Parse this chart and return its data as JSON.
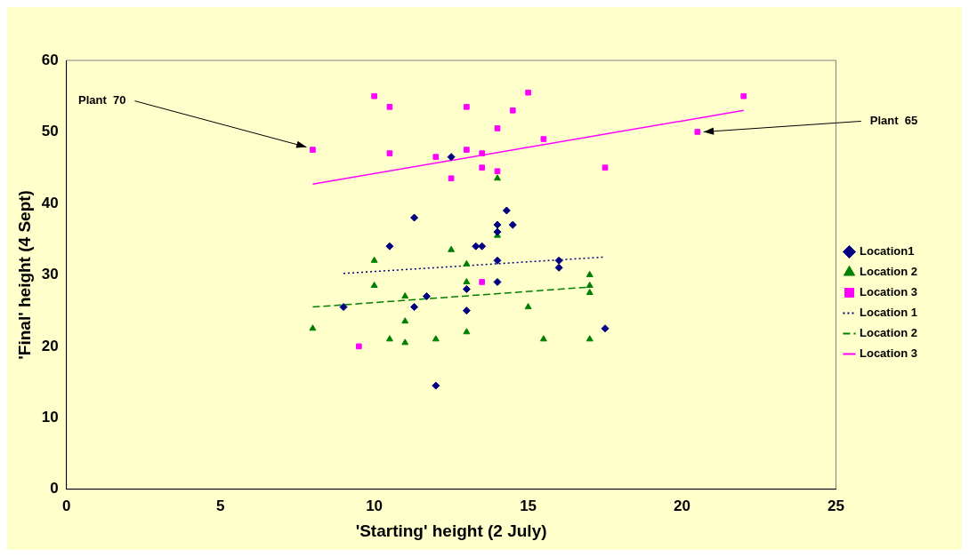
{
  "chart_data": {
    "type": "scatter",
    "xlabel": "'Starting' height (2 July)",
    "ylabel": "'Final' height (4 Sept)",
    "xlim": [
      0,
      25
    ],
    "xticks": [
      0,
      5,
      10,
      15,
      20,
      25
    ],
    "ylim": [
      0,
      60
    ],
    "yticks": [
      0,
      10,
      20,
      30,
      40,
      50,
      60
    ],
    "grid": false,
    "legend": "right",
    "annotations": [
      {
        "text": "Plant  70",
        "x": 8,
        "y": 47.5
      },
      {
        "text": "Plant  65",
        "x": 20.5,
        "y": 50
      }
    ],
    "series": [
      {
        "name": "Location1",
        "marker": "diamond",
        "color": "#000080",
        "x": [
          9,
          10.5,
          11.3,
          11.3,
          11.7,
          12,
          12.5,
          13,
          13,
          13.3,
          13.5,
          14,
          14,
          14,
          14,
          14.3,
          14.5,
          16,
          16,
          17.5
        ],
        "values": [
          25.5,
          34,
          38,
          25.5,
          27,
          14.5,
          46.5,
          28,
          25,
          34,
          34,
          37,
          36,
          32,
          29,
          39,
          37,
          32,
          31,
          22.5
        ]
      },
      {
        "name": "Location 2",
        "marker": "triangle",
        "color": "#008000",
        "x": [
          8,
          10,
          10,
          10.5,
          11,
          11,
          11,
          12,
          12.5,
          13,
          13,
          13,
          14,
          14,
          15,
          15.5,
          17,
          17,
          17,
          17
        ],
        "values": [
          22.5,
          32,
          28.5,
          21,
          27,
          23.5,
          20.5,
          21,
          33.5,
          31.5,
          29,
          22,
          43.5,
          35.5,
          25.5,
          21,
          30,
          28.5,
          27.5,
          21
        ]
      },
      {
        "name": "Location 3",
        "marker": "square",
        "color": "#ff00ff",
        "x": [
          8,
          9.5,
          10,
          10.5,
          10.5,
          12,
          12.5,
          13,
          13,
          13.5,
          13.5,
          13.5,
          14,
          14,
          14.5,
          15,
          15.5,
          17.5,
          20.5,
          22
        ],
        "values": [
          47.5,
          20,
          55,
          53.5,
          47,
          46.5,
          43.5,
          53.5,
          47.5,
          47,
          45,
          29,
          50.5,
          44.5,
          53,
          55.5,
          49,
          45,
          50,
          55
        ]
      },
      {
        "name": "Location 1",
        "type": "line",
        "line_style": "dotted",
        "marker": "none",
        "color": "#000080",
        "x": [
          9,
          17.5
        ],
        "values": [
          30.2,
          32.5
        ]
      },
      {
        "name": "Location 2",
        "type": "line",
        "line_style": "dashed",
        "marker": "none",
        "color": "#008000",
        "x": [
          8,
          17
        ],
        "values": [
          25.5,
          28.3
        ]
      },
      {
        "name": "Location 3",
        "type": "line",
        "line_style": "solid",
        "marker": "none",
        "color": "#ff00ff",
        "x": [
          8,
          22
        ],
        "values": [
          42.7,
          53
        ]
      }
    ]
  }
}
